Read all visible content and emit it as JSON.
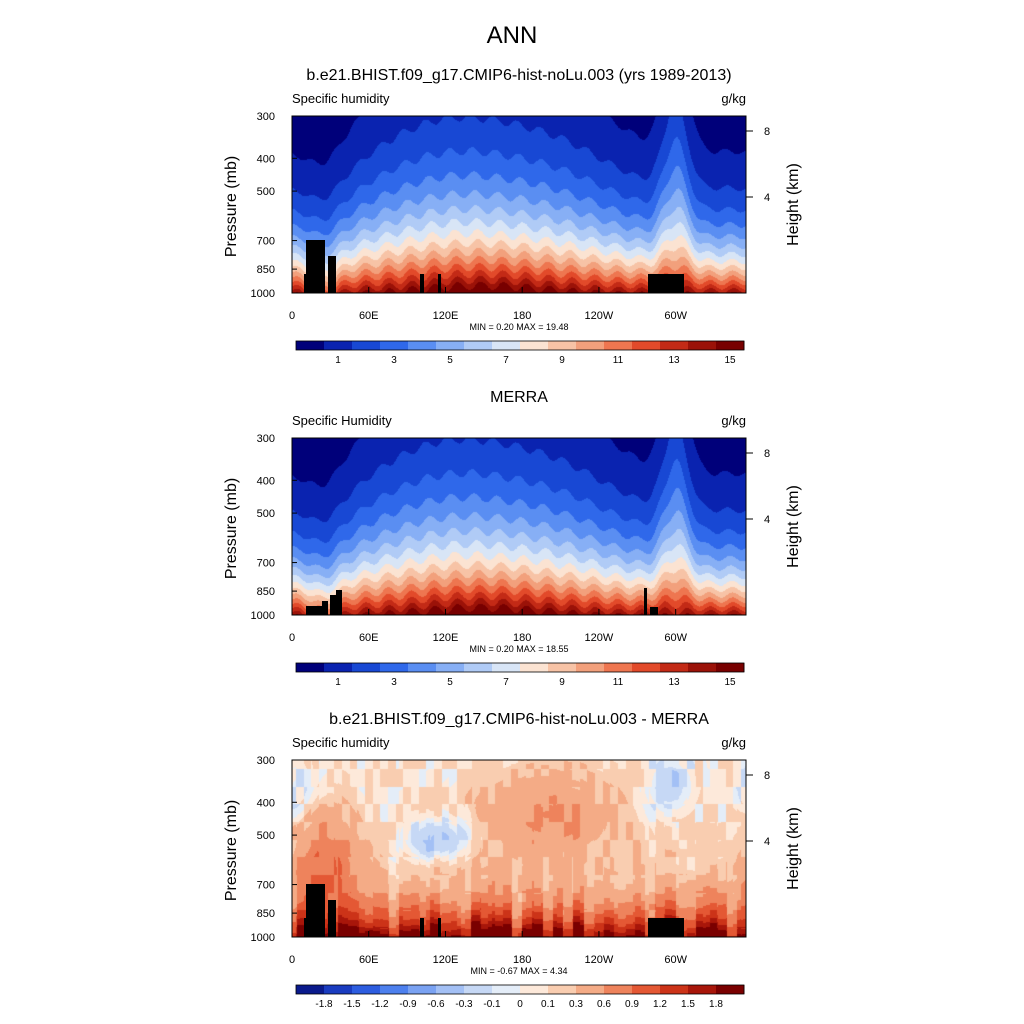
{
  "figure": {
    "title": "ANN"
  },
  "chart_data": [
    {
      "type": "heatmap",
      "title": "b.e21.BHIST.f09_g17.CMIP6-hist-noLu.003 (yrs 1989-2013)",
      "variable": "Specific humidity",
      "units": "g/kg",
      "ylabel": "Pressure (mb)",
      "ylabel_right": "Height (km)",
      "xticks": [
        "0",
        "60E",
        "120E",
        "180",
        "120W",
        "60W"
      ],
      "yticks": [
        "300",
        "400",
        "500",
        "700",
        "850",
        "1000"
      ],
      "yticks_right": [
        "8",
        "4"
      ],
      "xlim": [
        0,
        355
      ],
      "ylim": [
        1000,
        300
      ],
      "y_scale": "log-pressure",
      "stats": "MIN =   0.20  MAX =  19.48",
      "min": 0.2,
      "max": 19.48,
      "colorbar_ticks": [
        "1",
        "3",
        "5",
        "7",
        "9",
        "11",
        "13",
        "15"
      ],
      "colorbar_colors": [
        "#00007a",
        "#0a23b0",
        "#1848d4",
        "#2f68ea",
        "#5a8ef2",
        "#87aff5",
        "#b0cbf6",
        "#d8e5f6",
        "#fbe3d2",
        "#f7c3a6",
        "#f2a07c",
        "#ee7650",
        "#e24a2a",
        "#c32a16",
        "#9b1208",
        "#780000"
      ],
      "field": "q"
    },
    {
      "type": "heatmap",
      "title": "MERRA",
      "variable": "Specific Humidity",
      "units": "g/kg",
      "ylabel": "Pressure (mb)",
      "ylabel_right": "Height (km)",
      "xticks": [
        "0",
        "60E",
        "120E",
        "180",
        "120W",
        "60W"
      ],
      "yticks": [
        "300",
        "400",
        "500",
        "700",
        "850",
        "1000"
      ],
      "yticks_right": [
        "8",
        "4"
      ],
      "xlim": [
        0,
        355
      ],
      "ylim": [
        1000,
        300
      ],
      "y_scale": "log-pressure",
      "stats": "MIN =   0.20  MAX =  18.55",
      "min": 0.2,
      "max": 18.55,
      "colorbar_ticks": [
        "1",
        "3",
        "5",
        "7",
        "9",
        "11",
        "13",
        "15"
      ],
      "colorbar_colors": [
        "#00007a",
        "#0a23b0",
        "#1848d4",
        "#2f68ea",
        "#5a8ef2",
        "#87aff5",
        "#b0cbf6",
        "#d8e5f6",
        "#fbe3d2",
        "#f7c3a6",
        "#f2a07c",
        "#ee7650",
        "#e24a2a",
        "#c32a16",
        "#9b1208",
        "#780000"
      ],
      "field": "q"
    },
    {
      "type": "heatmap",
      "title": "b.e21.BHIST.f09_g17.CMIP6-hist-noLu.003 - MERRA",
      "variable": "Specific humidity",
      "units": "g/kg",
      "ylabel": "Pressure (mb)",
      "ylabel_right": "Height (km)",
      "xticks": [
        "0",
        "60E",
        "120E",
        "180",
        "120W",
        "60W"
      ],
      "yticks": [
        "300",
        "400",
        "500",
        "700",
        "850",
        "1000"
      ],
      "yticks_right": [
        "8",
        "4"
      ],
      "xlim": [
        0,
        355
      ],
      "ylim": [
        1000,
        300
      ],
      "y_scale": "log-pressure",
      "stats": "MIN =  -0.67  MAX =   4.34",
      "min": -0.67,
      "max": 4.34,
      "colorbar_ticks": [
        "-1.8",
        "-1.5",
        "-1.2",
        "-0.9",
        "-0.6",
        "-0.3",
        "-0.1",
        "0",
        "0.1",
        "0.3",
        "0.6",
        "0.9",
        "1.2",
        "1.5",
        "1.8"
      ],
      "colorbar_colors": [
        "#0a1a8c",
        "#1a3cc0",
        "#2d5de0",
        "#4d80ee",
        "#7aa2f2",
        "#a3c0f5",
        "#c6d8f5",
        "#e4edf8",
        "#fde9da",
        "#f9cdb0",
        "#f4ab86",
        "#ee835c",
        "#e45834",
        "#cc3318",
        "#a8160a",
        "#7a0000"
      ],
      "field": "diff"
    }
  ]
}
